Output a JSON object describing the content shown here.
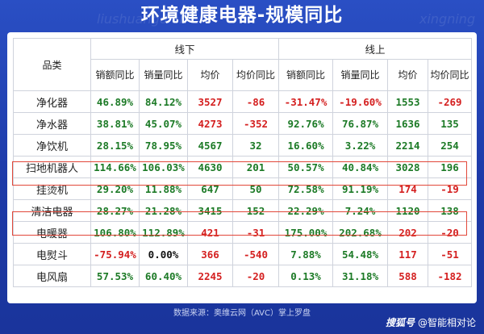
{
  "title": "环境健康电器-规模同比",
  "watermarks": [
    "liushuangdian",
    "xingning"
  ],
  "table": {
    "category_header": "品类",
    "offline_header": "线下",
    "online_header": "线上",
    "sub_headers": [
      "销额同比",
      "销量同比",
      "均价",
      "均价同比",
      "销额同比",
      "销量同比",
      "均价",
      "均价同比"
    ],
    "rows": [
      {
        "category": "净化器",
        "cells": [
          "46.89%",
          "84.12%",
          "3527",
          "-86",
          "-31.47%",
          "-19.60%",
          "1553",
          "-269"
        ],
        "colors": [
          "g",
          "g",
          "r",
          "r",
          "r",
          "r",
          "g",
          "r"
        ]
      },
      {
        "category": "净水器",
        "cells": [
          "38.81%",
          "45.07%",
          "4273",
          "-352",
          "92.76%",
          "76.87%",
          "1636",
          "135"
        ],
        "colors": [
          "g",
          "g",
          "r",
          "r",
          "g",
          "g",
          "g",
          "g"
        ]
      },
      {
        "category": "净饮机",
        "cells": [
          "28.15%",
          "78.95%",
          "4567",
          "32",
          "16.60%",
          "3.22%",
          "2214",
          "254"
        ],
        "colors": [
          "g",
          "g",
          "g",
          "g",
          "g",
          "g",
          "g",
          "g"
        ]
      },
      {
        "category": "扫地机器人",
        "cells": [
          "114.66%",
          "106.03%",
          "4630",
          "201",
          "50.57%",
          "40.84%",
          "3028",
          "196"
        ],
        "colors": [
          "g",
          "g",
          "g",
          "g",
          "g",
          "g",
          "g",
          "g"
        ]
      },
      {
        "category": "挂烫机",
        "cells": [
          "29.20%",
          "11.88%",
          "647",
          "50",
          "72.58%",
          "91.19%",
          "174",
          "-19"
        ],
        "colors": [
          "g",
          "g",
          "g",
          "g",
          "g",
          "g",
          "r",
          "r"
        ]
      },
      {
        "category": "清洁电器",
        "cells": [
          "28.27%",
          "21.28%",
          "3415",
          "152",
          "22.29%",
          "7.24%",
          "1120",
          "138"
        ],
        "colors": [
          "g",
          "g",
          "g",
          "g",
          "g",
          "g",
          "g",
          "g"
        ]
      },
      {
        "category": "电暖器",
        "cells": [
          "106.80%",
          "112.89%",
          "421",
          "-31",
          "175.00%",
          "202.68%",
          "202",
          "-20"
        ],
        "colors": [
          "g",
          "g",
          "r",
          "r",
          "g",
          "g",
          "r",
          "r"
        ]
      },
      {
        "category": "电熨斗",
        "cells": [
          "-75.94%",
          "0.00%",
          "366",
          "-540",
          "7.88%",
          "54.48%",
          "117",
          "-51"
        ],
        "colors": [
          "r",
          "k",
          "r",
          "r",
          "g",
          "g",
          "r",
          "r"
        ]
      },
      {
        "category": "电风扇",
        "cells": [
          "57.53%",
          "60.40%",
          "2245",
          "-20",
          "0.13%",
          "31.18%",
          "588",
          "-182"
        ],
        "colors": [
          "g",
          "g",
          "r",
          "r",
          "g",
          "g",
          "r",
          "r"
        ]
      }
    ]
  },
  "highlighted_rows": [
    "扫地机器人",
    "清洁电器"
  ],
  "footer": "数据来源：奥维云网（AVC）掌上罗盘",
  "brand": {
    "source": "搜狐号",
    "name": "@智能相对论"
  },
  "colors": {
    "positive": "#1c7a26",
    "negative": "#d41f1f",
    "background": "#1e3fb0",
    "highlight": "#e2483a"
  }
}
